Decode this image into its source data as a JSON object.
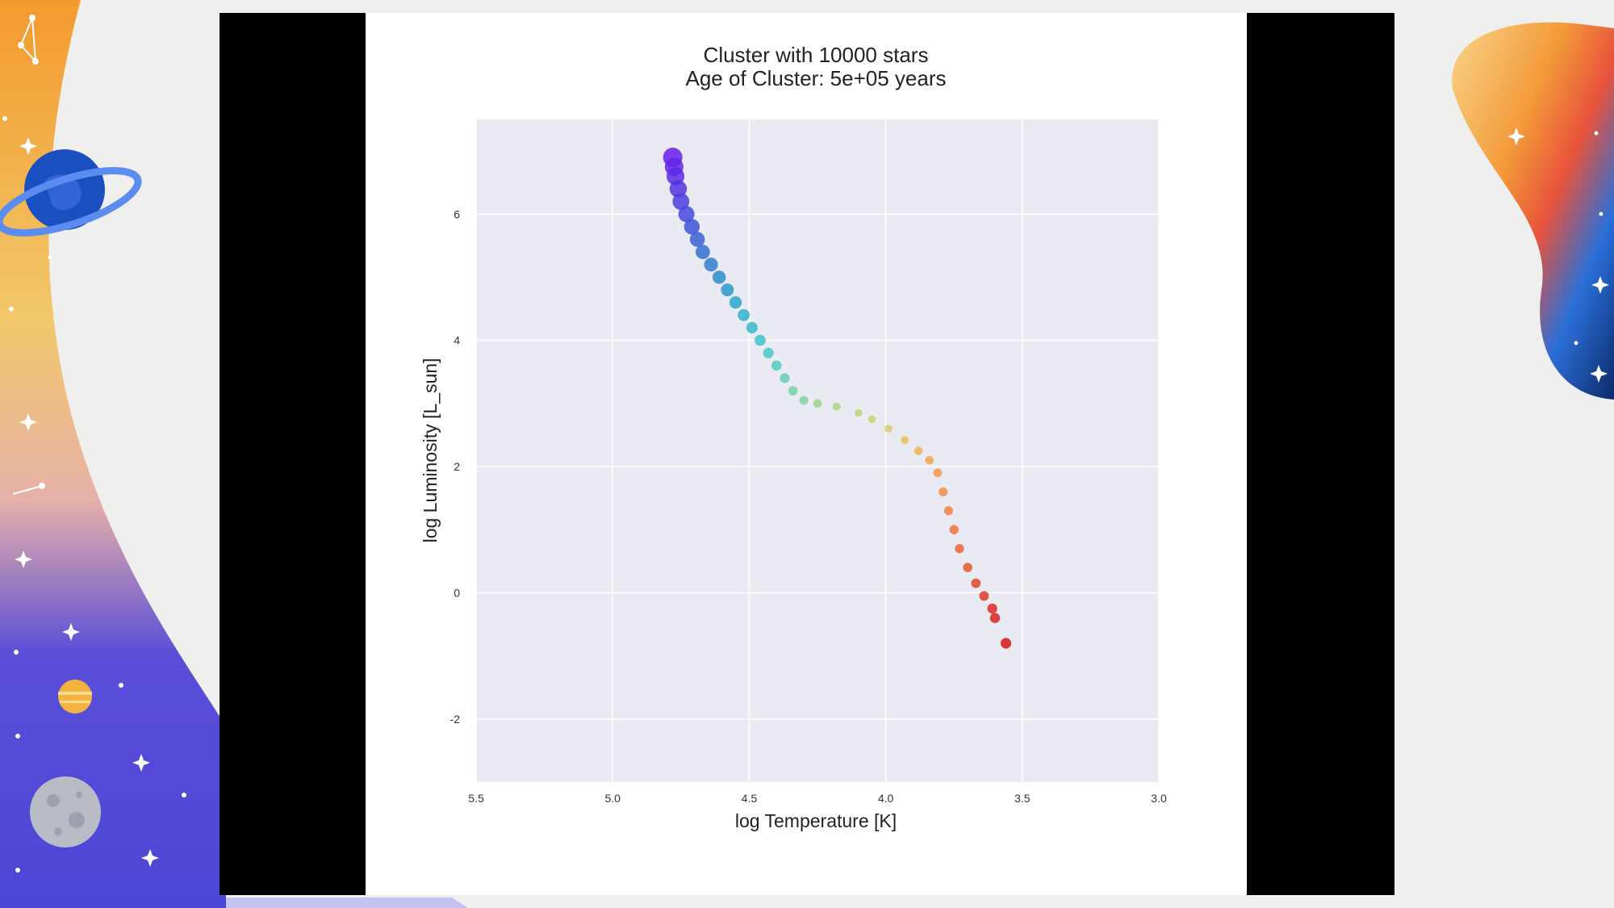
{
  "slide": {
    "background": "#efefee",
    "decorations": [
      "ringed-planet-icon",
      "striped-planet-icon",
      "moon-icon",
      "constellation-icon",
      "sparkle-icon",
      "wave-shape"
    ]
  },
  "chart_data": {
    "type": "scatter",
    "title": "Cluster with 10000 stars",
    "subtitle": "Age of Cluster: 5e+05 years",
    "xlabel": "log Temperature [K]",
    "ylabel": "log Luminosity [L_sun]",
    "xlim": [
      5.5,
      3.0
    ],
    "ylim": [
      -3,
      7.5
    ],
    "x_ticks": [
      5.5,
      5.0,
      4.5,
      4.0,
      3.5,
      3.0
    ],
    "x_tick_labels": [
      "5.5",
      "5.0",
      "4.5",
      "4.0",
      "3.5",
      "3.0"
    ],
    "y_ticks": [
      -2,
      0,
      2,
      4,
      6
    ],
    "y_tick_labels": [
      "-2",
      "0",
      "2",
      "4",
      "6"
    ],
    "x_reversed": true,
    "grid": true,
    "plot_background": "#eaeaf2",
    "colormap": "rainbow",
    "series": [
      {
        "points": [
          {
            "x": 4.78,
            "y": 6.9,
            "s": 1.0,
            "c": "#6a1fe8"
          },
          {
            "x": 4.775,
            "y": 6.75,
            "s": 0.95,
            "c": "#6524e6"
          },
          {
            "x": 4.77,
            "y": 6.6,
            "s": 0.9,
            "c": "#5d2ae4"
          },
          {
            "x": 4.76,
            "y": 6.4,
            "s": 0.86,
            "c": "#5533e2"
          },
          {
            "x": 4.75,
            "y": 6.2,
            "s": 0.82,
            "c": "#4c3ddf"
          },
          {
            "x": 4.73,
            "y": 6.0,
            "s": 0.78,
            "c": "#4648dc"
          },
          {
            "x": 4.71,
            "y": 5.8,
            "s": 0.74,
            "c": "#3f55d8"
          },
          {
            "x": 4.69,
            "y": 5.6,
            "s": 0.7,
            "c": "#3862d4"
          },
          {
            "x": 4.67,
            "y": 5.4,
            "s": 0.66,
            "c": "#3270d0"
          },
          {
            "x": 4.64,
            "y": 5.2,
            "s": 0.62,
            "c": "#2d7fcd"
          },
          {
            "x": 4.61,
            "y": 5.0,
            "s": 0.58,
            "c": "#2a8dcb"
          },
          {
            "x": 4.58,
            "y": 4.8,
            "s": 0.55,
            "c": "#299bcb"
          },
          {
            "x": 4.55,
            "y": 4.6,
            "s": 0.52,
            "c": "#2ba7cc"
          },
          {
            "x": 4.52,
            "y": 4.4,
            "s": 0.49,
            "c": "#30b2cd"
          },
          {
            "x": 4.49,
            "y": 4.2,
            "s": 0.46,
            "c": "#37bbcd"
          },
          {
            "x": 4.46,
            "y": 4.0,
            "s": 0.43,
            "c": "#3fc2cb"
          },
          {
            "x": 4.43,
            "y": 3.8,
            "s": 0.4,
            "c": "#49c8c6"
          },
          {
            "x": 4.4,
            "y": 3.6,
            "s": 0.37,
            "c": "#55ccbf"
          },
          {
            "x": 4.37,
            "y": 3.4,
            "s": 0.34,
            "c": "#64cfb5"
          },
          {
            "x": 4.34,
            "y": 3.2,
            "s": 0.31,
            "c": "#75d1aa"
          },
          {
            "x": 4.3,
            "y": 3.05,
            "s": 0.28,
            "c": "#86d29c"
          },
          {
            "x": 4.25,
            "y": 3.0,
            "s": 0.25,
            "c": "#9bd28f"
          },
          {
            "x": 4.18,
            "y": 2.95,
            "s": 0.22,
            "c": "#aed383"
          },
          {
            "x": 4.1,
            "y": 2.85,
            "s": 0.2,
            "c": "#bfd279"
          },
          {
            "x": 4.05,
            "y": 2.75,
            "s": 0.2,
            "c": "#cdd06f"
          },
          {
            "x": 3.99,
            "y": 2.6,
            "s": 0.2,
            "c": "#dccb66"
          },
          {
            "x": 3.93,
            "y": 2.42,
            "s": 0.22,
            "c": "#e8c15c"
          },
          {
            "x": 3.88,
            "y": 2.25,
            "s": 0.24,
            "c": "#f0b454"
          },
          {
            "x": 3.84,
            "y": 2.1,
            "s": 0.26,
            "c": "#f4a54d"
          },
          {
            "x": 3.81,
            "y": 1.9,
            "s": 0.27,
            "c": "#f59848"
          },
          {
            "x": 3.79,
            "y": 1.6,
            "s": 0.28,
            "c": "#f48c44"
          },
          {
            "x": 3.77,
            "y": 1.3,
            "s": 0.29,
            "c": "#f28040"
          },
          {
            "x": 3.75,
            "y": 1.0,
            "s": 0.3,
            "c": "#ef733c"
          },
          {
            "x": 3.73,
            "y": 0.7,
            "s": 0.3,
            "c": "#ec6638"
          },
          {
            "x": 3.7,
            "y": 0.4,
            "s": 0.31,
            "c": "#e85733"
          },
          {
            "x": 3.67,
            "y": 0.15,
            "s": 0.32,
            "c": "#e4482e"
          },
          {
            "x": 3.64,
            "y": -0.05,
            "s": 0.33,
            "c": "#e03a2a"
          },
          {
            "x": 3.61,
            "y": -0.25,
            "s": 0.35,
            "c": "#dc2c25"
          },
          {
            "x": 3.6,
            "y": -0.4,
            "s": 0.37,
            "c": "#d92220"
          },
          {
            "x": 3.56,
            "y": -0.8,
            "s": 0.4,
            "c": "#d6151a"
          }
        ]
      }
    ]
  }
}
